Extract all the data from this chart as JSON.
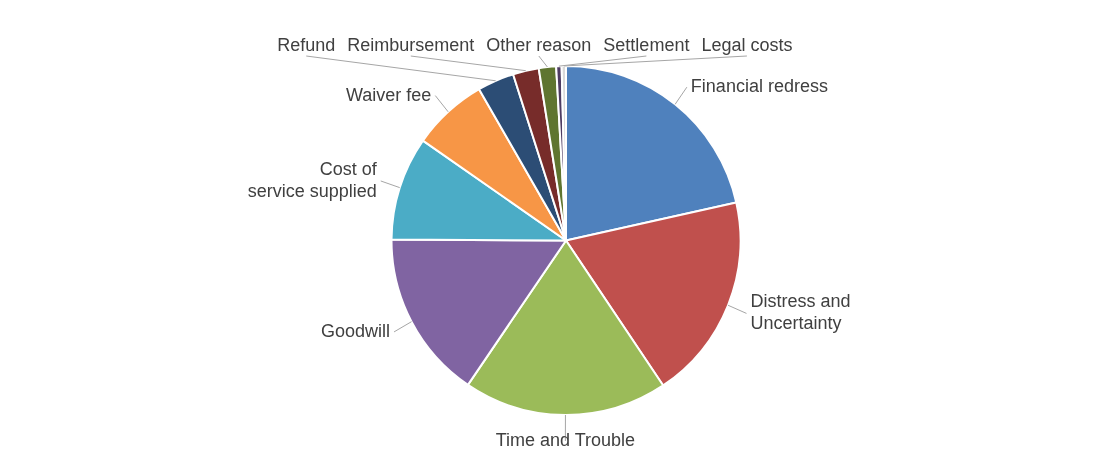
{
  "chart_data": {
    "type": "pie",
    "categories": [
      "Financial redress",
      "Distress and Uncertainty",
      "Time and Trouble",
      "Goodwill",
      "Cost of service supplied",
      "Waiver fee",
      "Refund",
      "Reimbursement",
      "Other reason",
      "Settlement",
      "Legal costs"
    ],
    "values": [
      21.5,
      19.1,
      18.9,
      15.6,
      9.6,
      7.0,
      3.4,
      2.4,
      1.6,
      0.5,
      0.4
    ],
    "colors": [
      "#4f81bd",
      "#c0504d",
      "#9bbb59",
      "#8064a2",
      "#4bacc6",
      "#f79646",
      "#2c4d75",
      "#772c2a",
      "#5f7530",
      "#4d3b62",
      "#d9d9d9"
    ],
    "legend": false
  }
}
